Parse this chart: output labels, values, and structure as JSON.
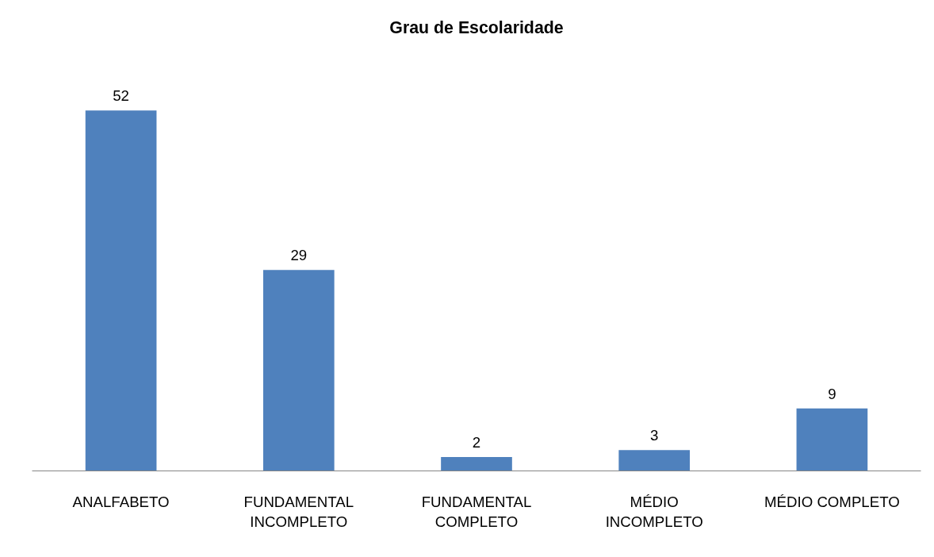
{
  "chart_data": {
    "type": "bar",
    "title": "Grau de Escolaridade",
    "categories": [
      "ANALFABETO",
      "FUNDAMENTAL INCOMPLETO",
      "FUNDAMENTAL COMPLETO",
      "MÉDIO INCOMPLETO",
      "MÉDIO COMPLETO"
    ],
    "values": [
      52,
      29,
      2,
      3,
      9
    ],
    "color": "#4f81bd",
    "data_labels": true,
    "grid": false
  }
}
